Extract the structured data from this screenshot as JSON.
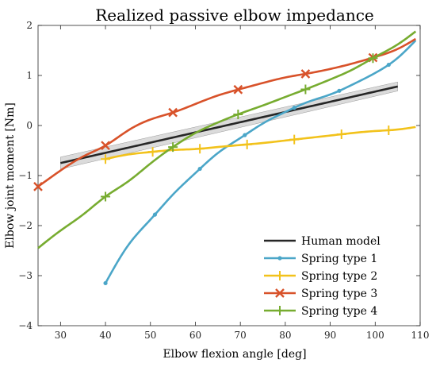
{
  "chart_data": {
    "type": "line",
    "title": "Realized passive elbow impedance",
    "xlabel": "Elbow flexion angle [deg]",
    "ylabel": "Elbow joint moment [Nm]",
    "xlim": [
      25,
      110
    ],
    "ylim": [
      -4,
      2
    ],
    "x_ticks": [
      30,
      40,
      50,
      60,
      70,
      80,
      90,
      100,
      110
    ],
    "y_ticks": [
      -4,
      -3,
      -2,
      -1,
      0,
      1,
      2
    ],
    "grid": false,
    "legend_position": "bottom-right",
    "series": [
      {
        "name": "Human model",
        "color": "#262626",
        "marker": "none",
        "band": true,
        "band_color": "#bdbdbd",
        "band_width": [
          0.12,
          0.09
        ],
        "x": [
          30,
          105
        ],
        "y": [
          -0.75,
          0.78
        ],
        "markers_x": []
      },
      {
        "name": "Spring type 1",
        "color": "#4ba6c8",
        "marker": "dot",
        "x": [
          40,
          45,
          50,
          55,
          60,
          65,
          70,
          75,
          80,
          85,
          90,
          95,
          100,
          105,
          109
        ],
        "y": [
          -3.15,
          -2.4,
          -1.88,
          -1.38,
          -0.95,
          -0.55,
          -0.25,
          0.04,
          0.27,
          0.47,
          0.62,
          0.82,
          1.05,
          1.35,
          1.7
        ],
        "markers_x": [
          40,
          51,
          61,
          71,
          82,
          92,
          103
        ]
      },
      {
        "name": "Spring type 2",
        "color": "#f2c21b",
        "marker": "plus",
        "x": [
          40,
          45,
          50,
          55,
          60,
          65,
          70,
          75,
          80,
          85,
          90,
          95,
          100,
          105,
          109
        ],
        "y": [
          -0.67,
          -0.58,
          -0.53,
          -0.49,
          -0.47,
          -0.43,
          -0.39,
          -0.35,
          -0.3,
          -0.25,
          -0.2,
          -0.15,
          -0.11,
          -0.08,
          -0.03
        ],
        "markers_x": [
          40,
          50.5,
          61,
          71.5,
          82,
          92.5,
          103
        ]
      },
      {
        "name": "Spring type 3",
        "color": "#d8522a",
        "marker": "x",
        "x": [
          25,
          30,
          35,
          40,
          45,
          50,
          55,
          60,
          65,
          70,
          75,
          80,
          85,
          90,
          95,
          100,
          105,
          109
        ],
        "y": [
          -1.22,
          -0.9,
          -0.62,
          -0.4,
          -0.1,
          0.12,
          0.26,
          0.43,
          0.6,
          0.73,
          0.85,
          0.96,
          1.04,
          1.13,
          1.24,
          1.37,
          1.53,
          1.73
        ],
        "markers_x": [
          25,
          40,
          55,
          69.5,
          84.5,
          99.5
        ]
      },
      {
        "name": "Spring type 4",
        "color": "#77ac30",
        "marker": "plus",
        "x": [
          25,
          30,
          35,
          40,
          45,
          50,
          55,
          60,
          65,
          70,
          75,
          80,
          85,
          90,
          95,
          100,
          105,
          109
        ],
        "y": [
          -2.45,
          -2.1,
          -1.78,
          -1.42,
          -1.12,
          -0.76,
          -0.43,
          -0.15,
          0.06,
          0.24,
          0.4,
          0.57,
          0.74,
          0.92,
          1.12,
          1.37,
          1.62,
          1.88
        ],
        "markers_x": [
          40,
          55,
          69.5,
          84.5,
          99.5
        ]
      }
    ]
  }
}
